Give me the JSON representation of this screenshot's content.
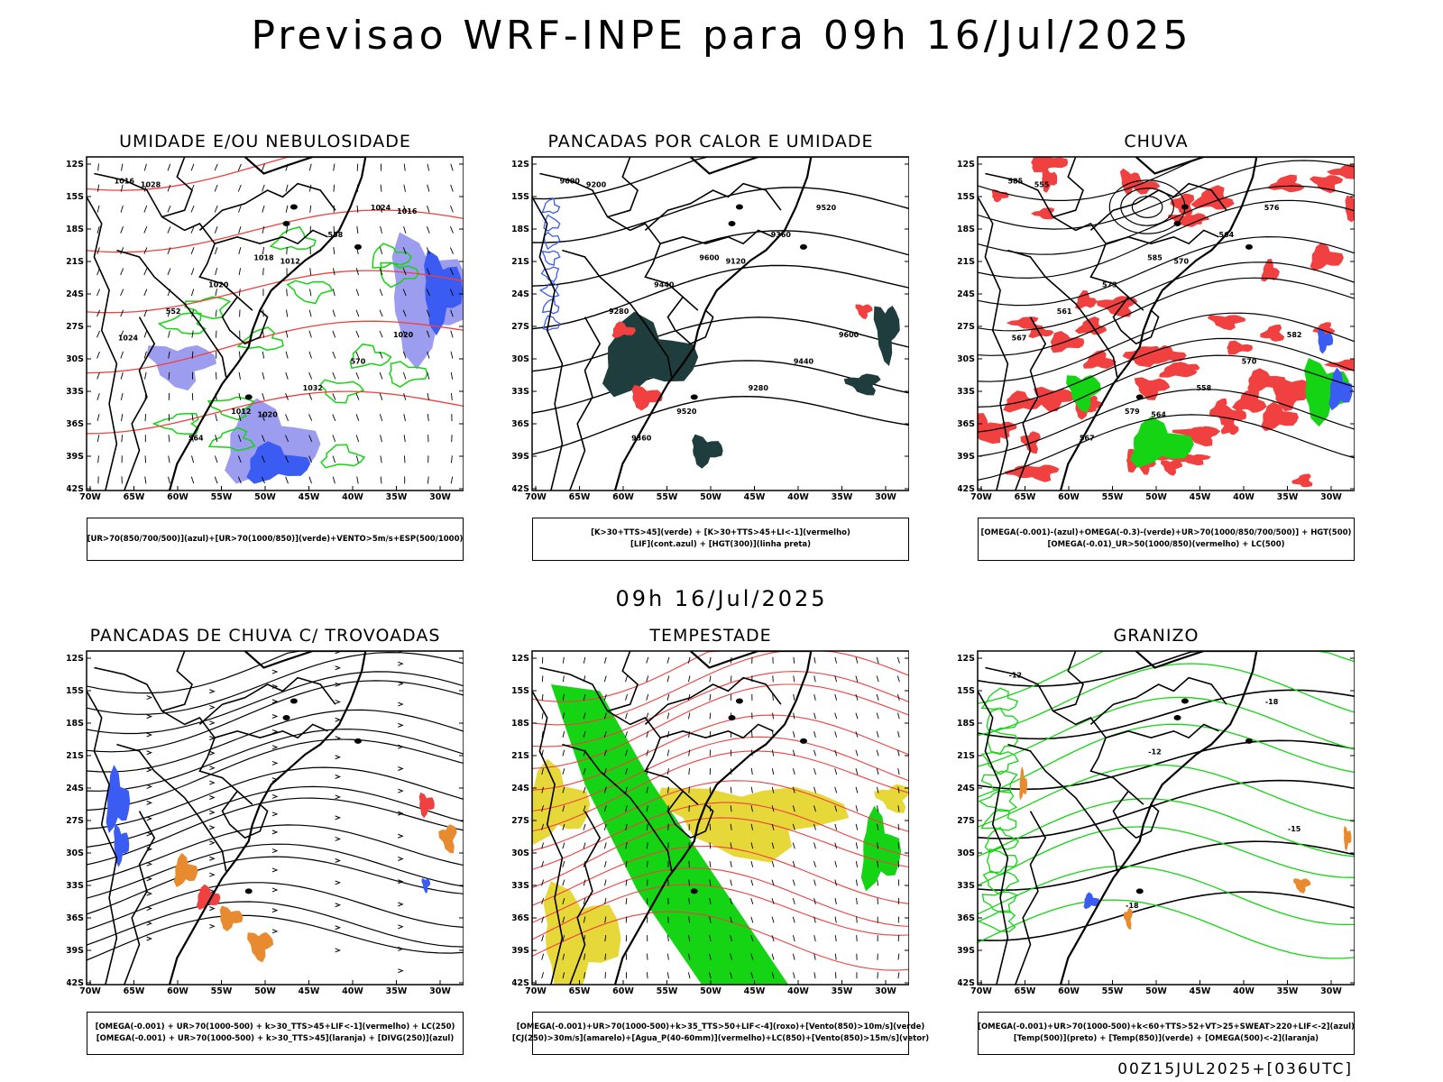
{
  "header": {
    "title": "Previsao WRF-INPE  para 09h 16/Jul/2025",
    "mid_title": "09h 16/Jul/2025",
    "footer": "00Z15JUL2025+[036UTC]"
  },
  "axes": {
    "lat_labels": [
      "12S",
      "15S",
      "18S",
      "21S",
      "24S",
      "27S",
      "30S",
      "33S",
      "36S",
      "39S",
      "42S"
    ],
    "lon_labels": [
      "70W",
      "65W",
      "60W",
      "55W",
      "50W",
      "45W",
      "40W",
      "35W",
      "30W"
    ]
  },
  "colors": {
    "blue": "#3a5cf2",
    "lavender": "#9d9df0",
    "green": "#14d414",
    "red": "#f04040",
    "darkteal": "#1f3d3d",
    "orange": "#e88a30",
    "yellow": "#e6d838",
    "black": "#000000"
  },
  "panels": [
    {
      "title": "UMIDADE E/OU NEBULOSIDADE",
      "legend": [
        "[UR>70(850/700/500)](azul)+[UR>70(1000/850)](verde)+VENTO>5m/s+ESP(500/1000)"
      ],
      "labels": [
        "1016",
        "1018",
        "1020",
        "1012",
        "1024",
        "1020",
        "570",
        "564",
        "558",
        "552",
        "1032",
        "1028",
        "1012",
        "1024",
        "1020",
        "1016"
      ]
    },
    {
      "title": "PANCADAS POR CALOR E UMIDADE",
      "legend": [
        "[K>30+TTS>45](verde) + [K>30+TTS>45+LI<-1](vermelho)",
        "[LIF](cont.azul) + [HGT(300)](linha preta)"
      ],
      "labels": [
        "9600",
        "9600",
        "9600",
        "9520",
        "9520",
        "9440",
        "9440",
        "9360",
        "9360",
        "9280",
        "9280",
        "9200",
        "9120"
      ]
    },
    {
      "title": "CHUVA",
      "legend": [
        "[OMEGA(-0.001)-(azul)+OMEGA(-0.3)-(verde)+UR>70(1000/850/700/500)] + HGT(500)",
        "[OMEGA(-0.01)_UR>50(1000/850)(vermelho) + LC(500)"
      ],
      "labels": [
        "585",
        "585",
        "582",
        "579",
        "576",
        "573",
        "570",
        "567",
        "564",
        "561",
        "558",
        "555",
        "570",
        "567",
        "564"
      ]
    },
    {
      "title": "PANCADAS DE CHUVA C/ TROVOADAS",
      "legend": [
        "[OMEGA(-0.001) + UR>70(1000-500) + k>30_TTS>45+LIF<-1](vermelho) + LC(250)",
        "[OMEGA(-0.001) + UR>70(1000-500) + k>30_TTS>45](laranja) + [DIVG(250)](azul)"
      ],
      "labels": []
    },
    {
      "title": "TEMPESTADE",
      "legend": [
        "[OMEGA(-0.001)+UR>70(1000-500)+k>35_TTS>50+LIF<-4](roxo)+[Vento(850)>10m/s](verde)",
        "[CJ(250)>30m/s](amarelo)+[Agua_P(40-60mm)](vermelho)+LC(850)+[Vento(850)>15m/s](vetor)"
      ],
      "labels": []
    },
    {
      "title": "GRANIZO",
      "legend": [
        "[OMEGA(-0.001)+UR>70(1000-500)+k<60+TTS>52+VT>25+SWEAT>220+LIF<-2](azul)",
        "[Temp(500)](preto) + [Temp(850)](verde) + [OMEGA(500)<-2](laranja)"
      ],
      "labels": [
        "-12",
        "-12",
        "-15",
        "-18",
        "-18"
      ]
    }
  ]
}
